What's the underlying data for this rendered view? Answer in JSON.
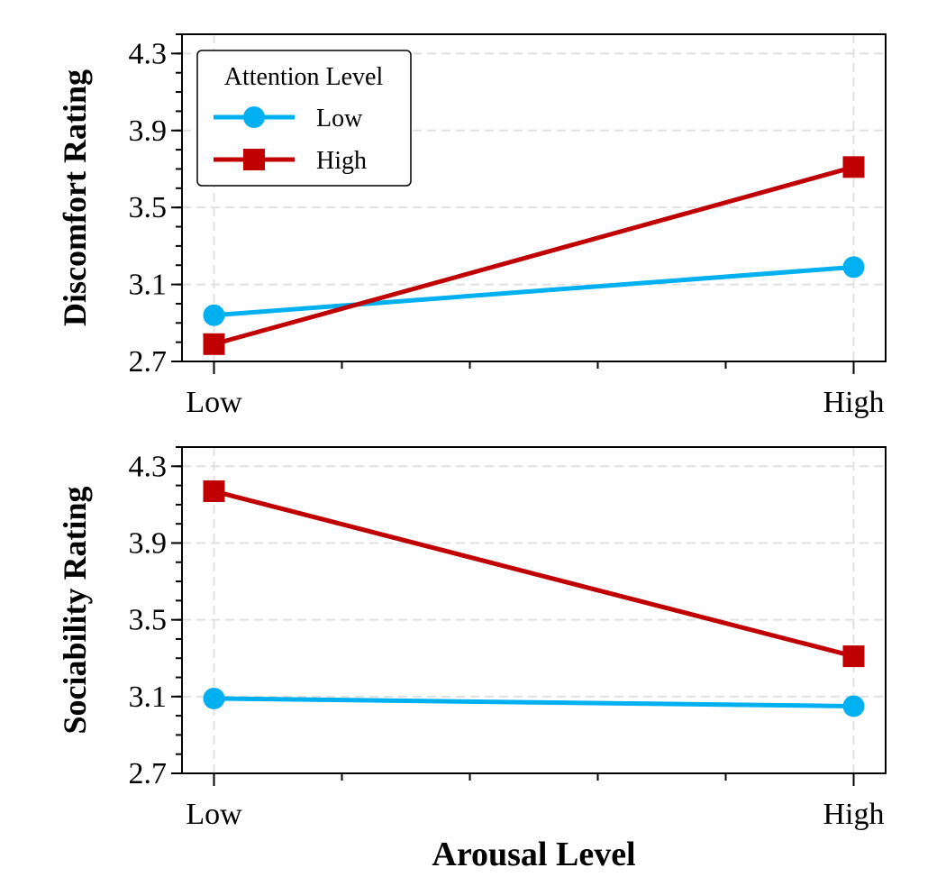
{
  "chart_data": [
    {
      "type": "line",
      "ylabel": "Discomfort Rating",
      "xlabel": "",
      "categories": [
        "Low",
        "High"
      ],
      "ylim": [
        2.7,
        4.4
      ],
      "yticks": [
        "2.7",
        "3.1",
        "3.5",
        "3.9",
        "4.3"
      ],
      "grid": true,
      "legend": {
        "title": "Attention Level",
        "placement": "top-left"
      },
      "series": [
        {
          "name": "Low",
          "values": [
            2.94,
            3.19
          ],
          "color": "#00b0f0",
          "marker": "circle"
        },
        {
          "name": "High",
          "values": [
            2.79,
            3.71
          ],
          "color": "#c00000",
          "marker": "square"
        }
      ]
    },
    {
      "type": "line",
      "ylabel": "Sociability Rating",
      "xlabel": "Arousal Level",
      "categories": [
        "Low",
        "High"
      ],
      "ylim": [
        2.7,
        4.4
      ],
      "yticks": [
        "2.7",
        "3.1",
        "3.5",
        "3.9",
        "4.3"
      ],
      "grid": true,
      "series": [
        {
          "name": "Low",
          "values": [
            3.09,
            3.05
          ],
          "color": "#00b0f0",
          "marker": "circle"
        },
        {
          "name": "High",
          "values": [
            4.17,
            3.31
          ],
          "color": "#c00000",
          "marker": "square"
        }
      ]
    }
  ]
}
